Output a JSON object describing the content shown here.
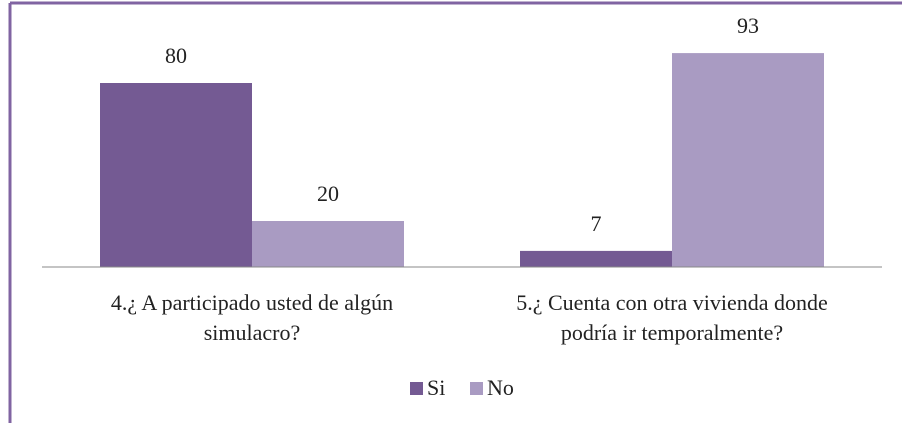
{
  "chart_data": {
    "type": "bar",
    "categories": [
      "4.¿ A participado usted de algún simulacro?",
      "5.¿ Cuenta con otra vivienda donde podría ir temporalmente?"
    ],
    "series": [
      {
        "name": "Si",
        "color": "#745a93",
        "values": [
          80,
          7
        ]
      },
      {
        "name": "No",
        "color": "#a99bc2",
        "values": [
          20,
          93
        ]
      }
    ],
    "ylim": [
      0,
      100
    ],
    "legend": "bottom"
  }
}
